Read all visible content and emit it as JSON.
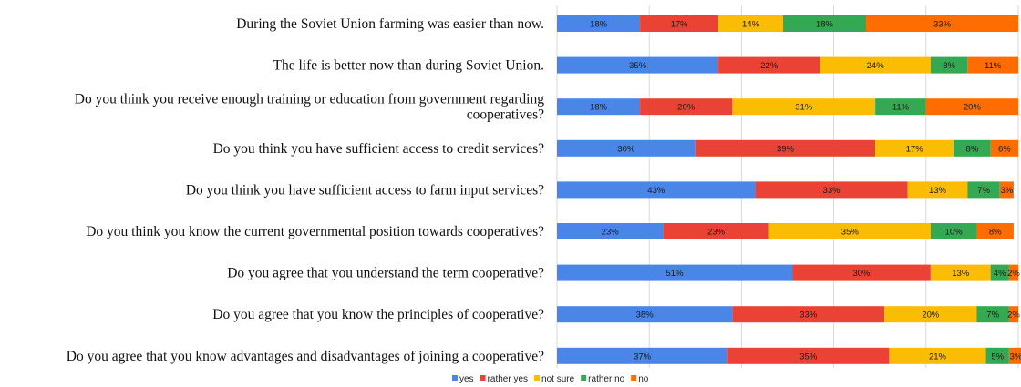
{
  "chart_data": {
    "type": "bar",
    "orientation": "horizontal",
    "stacked": true,
    "percent_scale": true,
    "title": "",
    "xlabel": "",
    "ylabel": "",
    "xlim": [
      0,
      100
    ],
    "grid": true,
    "legend_position": "bottom",
    "categories": [
      "During the Soviet Union farming was easier than now.",
      "The life is better now than during Soviet Union.",
      "Do you think you receive enough training or education from government regarding cooperatives?",
      "Do you think you have sufficient access to credit services?",
      "Do you think you have sufficient access to farm input services?",
      "Do you think you know the current governmental position towards cooperatives?",
      "Do you agree that you understand the term cooperative?",
      "Do you agree that you know the principles of cooperative?",
      "Do you agree that you know advantages and disadvantages of joining a cooperative?"
    ],
    "category_lines": [
      [
        "During the Soviet Union farming was easier than now."
      ],
      [
        "The life is better now than during Soviet Union."
      ],
      [
        "Do you think you receive enough training or education from government regarding",
        "cooperatives?"
      ],
      [
        "Do you think you have sufficient access to credit services?"
      ],
      [
        "Do you think you have sufficient access to farm input services?"
      ],
      [
        "Do you think you know the current governmental position towards cooperatives?"
      ],
      [
        "Do you agree that you understand the term cooperative?"
      ],
      [
        "Do you agree that you know the principles of cooperative?"
      ],
      [
        "Do you agree that you know advantages and disadvantages of joining a cooperative?"
      ]
    ],
    "series": [
      {
        "name": "yes",
        "color": "#4a86e8",
        "values": [
          18,
          35,
          18,
          30,
          43,
          23,
          51,
          38,
          37
        ]
      },
      {
        "name": "rather yes",
        "color": "#ea4335",
        "values": [
          17,
          22,
          20,
          39,
          33,
          23,
          30,
          33,
          35
        ]
      },
      {
        "name": "not sure",
        "color": "#fbbc04",
        "values": [
          14,
          24,
          31,
          17,
          13,
          35,
          13,
          20,
          21
        ]
      },
      {
        "name": "rather no",
        "color": "#34a853",
        "values": [
          18,
          8,
          11,
          8,
          7,
          10,
          4,
          7,
          5
        ]
      },
      {
        "name": "no",
        "color": "#ff6d01",
        "values": [
          33,
          11,
          20,
          6,
          3,
          8,
          2,
          2,
          3
        ]
      }
    ]
  }
}
